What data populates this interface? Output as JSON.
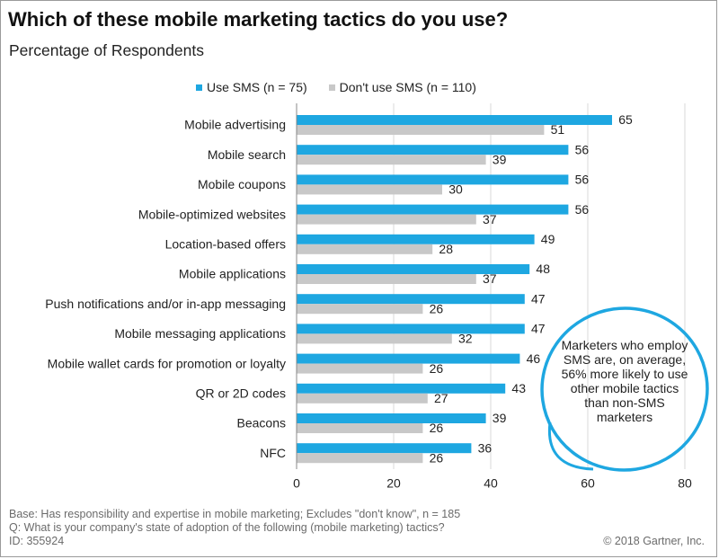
{
  "title": "Which of these mobile marketing tactics do you use?",
  "subtitle": "Percentage of Respondents",
  "callout": "Marketers who employ SMS are, on average, 56% more likely to use other mobile tactics than non-SMS marketers",
  "footer": {
    "base": "Base: Has responsibility and expertise in mobile marketing; Excludes \"don't know\", n = 185",
    "question": "Q: What is your company's state of adoption of the following (mobile marketing) tactics?",
    "id": "ID: 355924",
    "copyright": "© 2018 Gartner, Inc."
  },
  "colors": {
    "use_sms": "#1ea7e1",
    "dont_use_sms": "#c8c8c8",
    "callout_circle": "#1ea7e1"
  },
  "chart_data": {
    "type": "bar",
    "orientation": "horizontal",
    "title": "Which of these mobile marketing tactics do you use?",
    "subtitle": "Percentage of Respondents",
    "categories": [
      "Mobile advertising",
      "Mobile search",
      "Mobile coupons",
      "Mobile-optimized websites",
      "Location-based offers",
      "Mobile applications",
      "Push notifications and/or in-app messaging",
      "Mobile messaging applications",
      "Mobile wallet cards for promotion or loyalty",
      "QR or 2D codes",
      "Beacons",
      "NFC"
    ],
    "series": [
      {
        "name": "Use SMS (n = 75)",
        "color": "#1ea7e1",
        "values": [
          65,
          56,
          56,
          56,
          49,
          48,
          47,
          47,
          46,
          43,
          39,
          36
        ]
      },
      {
        "name": "Don't use SMS (n = 110)",
        "color": "#c8c8c8",
        "values": [
          51,
          39,
          30,
          37,
          28,
          37,
          26,
          32,
          26,
          27,
          26,
          26
        ]
      }
    ],
    "xlim": [
      0,
      80
    ],
    "xticks": [
      0,
      20,
      40,
      60,
      80
    ],
    "grid": true,
    "legend": "top"
  }
}
